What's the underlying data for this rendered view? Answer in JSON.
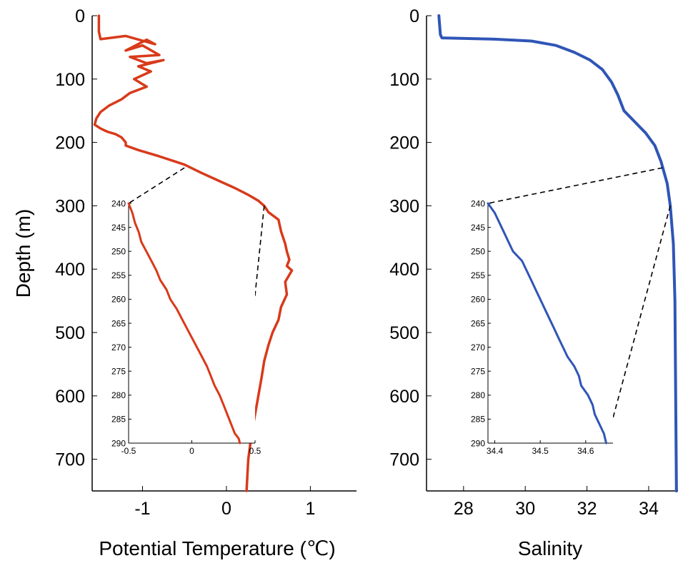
{
  "colors": {
    "temperature": "#d83a1a",
    "salinity": "#2f55b6",
    "axis": "#000000",
    "connector": "#000000"
  },
  "chart_data": [
    {
      "id": "temperature-main",
      "type": "line",
      "title": "",
      "xlabel": "Potential Temperature (℃)",
      "ylabel": "Depth (m)",
      "xlim": [
        -1.6,
        1.55
      ],
      "ylim": [
        0,
        750
      ],
      "y_inverted": true,
      "xticks": [
        -1,
        0,
        1
      ],
      "xtick_labels": [
        "-1",
        "0",
        "1"
      ],
      "yticks": [
        0,
        100,
        200,
        300,
        400,
        500,
        600,
        700
      ],
      "ytick_labels": [
        "0",
        "100",
        "200",
        "300",
        "400",
        "500",
        "600",
        "700"
      ],
      "series": [
        {
          "x": [
            -1.52,
            -1.52,
            -1.5,
            -1.2,
            -0.85,
            -0.95,
            -1.2,
            -1.0,
            -0.8,
            -1.15,
            -0.95,
            -0.75,
            -1.05,
            -0.9,
            -1.1,
            -0.95,
            -1.15,
            -1.25,
            -1.4,
            -1.5,
            -1.55,
            -1.57,
            -1.5,
            -1.42,
            -1.32,
            -1.25,
            -1.2,
            -1.2,
            -1.05,
            -0.8,
            -0.5,
            -0.3,
            -0.1,
            0.1,
            0.25,
            0.38,
            0.45,
            0.5,
            0.62,
            0.65,
            0.7,
            0.72,
            0.75,
            0.72,
            0.78,
            0.7,
            0.72,
            0.65,
            0.62,
            0.55,
            0.5,
            0.45,
            0.42,
            0.38,
            0.34,
            0.3,
            0.26,
            0.24
          ],
          "y": [
            0,
            25,
            37,
            32,
            45,
            38,
            55,
            47,
            62,
            65,
            75,
            70,
            80,
            88,
            100,
            112,
            122,
            132,
            142,
            152,
            162,
            172,
            178,
            183,
            187,
            192,
            200,
            205,
            212,
            222,
            235,
            248,
            260,
            272,
            282,
            292,
            300,
            310,
            322,
            340,
            360,
            372,
            385,
            395,
            402,
            420,
            440,
            460,
            480,
            500,
            520,
            545,
            570,
            600,
            630,
            660,
            700,
            750
          ]
        }
      ]
    },
    {
      "id": "temperature-inset",
      "type": "line",
      "xlim": [
        -0.5,
        0.5
      ],
      "ylim": [
        240,
        290
      ],
      "y_inverted": true,
      "xticks": [
        -0.5,
        0,
        0.5
      ],
      "xtick_labels": [
        "-0.5",
        "0",
        "0.5"
      ],
      "yticks": [
        240,
        245,
        250,
        255,
        260,
        265,
        270,
        275,
        280,
        285,
        290
      ],
      "ytick_labels": [
        "240",
        "245",
        "250",
        "255",
        "260",
        "265",
        "270",
        "275",
        "280",
        "285",
        "290"
      ],
      "series": [
        {
          "x": [
            -0.5,
            -0.47,
            -0.45,
            -0.42,
            -0.4,
            -0.36,
            -0.32,
            -0.28,
            -0.25,
            -0.2,
            -0.17,
            -0.12,
            -0.08,
            -0.04,
            0.0,
            0.04,
            0.08,
            0.12,
            0.15,
            0.18,
            0.22,
            0.25,
            0.28,
            0.31,
            0.34,
            0.37,
            0.38
          ],
          "y": [
            240,
            242,
            244,
            246,
            248,
            250,
            252,
            254,
            256,
            258,
            260,
            262,
            264,
            266,
            268,
            270,
            272,
            274,
            276,
            278,
            280,
            282,
            284,
            286,
            288,
            289,
            290
          ]
        }
      ]
    },
    {
      "id": "salinity-main",
      "type": "line",
      "title": "",
      "xlabel": "Salinity",
      "ylabel": "",
      "xlim": [
        26.8,
        34.95
      ],
      "ylim": [
        0,
        750
      ],
      "y_inverted": true,
      "xticks": [
        28,
        30,
        32,
        34
      ],
      "xtick_labels": [
        "28",
        "30",
        "32",
        "34"
      ],
      "yticks": [
        0,
        100,
        200,
        300,
        400,
        500,
        600,
        700
      ],
      "ytick_labels": [
        "0",
        "100",
        "200",
        "300",
        "400",
        "500",
        "600",
        "700"
      ],
      "series": [
        {
          "x": [
            27.2,
            27.25,
            27.3,
            29.0,
            30.2,
            31.0,
            31.6,
            32.1,
            32.5,
            32.8,
            33.0,
            33.2,
            33.6,
            33.9,
            34.2,
            34.4,
            34.6,
            34.7,
            34.8,
            34.85,
            34.9
          ],
          "y": [
            0,
            30,
            35,
            37,
            40,
            47,
            58,
            70,
            85,
            105,
            125,
            150,
            170,
            185,
            205,
            230,
            265,
            300,
            360,
            450,
            750
          ]
        }
      ]
    },
    {
      "id": "salinity-inset",
      "type": "line",
      "xlim": [
        34.385,
        34.66
      ],
      "ylim": [
        240,
        290
      ],
      "y_inverted": true,
      "xticks": [
        34.4,
        34.5,
        34.6
      ],
      "xtick_labels": [
        "34.4",
        "34.5",
        "34.6"
      ],
      "yticks": [
        240,
        245,
        250,
        255,
        260,
        265,
        270,
        275,
        280,
        285,
        290
      ],
      "ytick_labels": [
        "240",
        "245",
        "250",
        "255",
        "260",
        "265",
        "270",
        "275",
        "280",
        "285",
        "290"
      ],
      "series": [
        {
          "x": [
            34.385,
            34.4,
            34.41,
            34.42,
            34.43,
            34.44,
            34.46,
            34.47,
            34.48,
            34.49,
            34.5,
            34.51,
            34.52,
            34.53,
            34.54,
            34.55,
            34.56,
            34.575,
            34.585,
            34.59,
            34.605,
            34.615,
            34.62,
            34.63,
            34.64,
            34.645
          ],
          "y": [
            240,
            242,
            244,
            246,
            248,
            250,
            252,
            254,
            256,
            258,
            260,
            262,
            264,
            266,
            268,
            270,
            272,
            274,
            276,
            278,
            280,
            282,
            284,
            286,
            288,
            290
          ]
        }
      ]
    }
  ]
}
